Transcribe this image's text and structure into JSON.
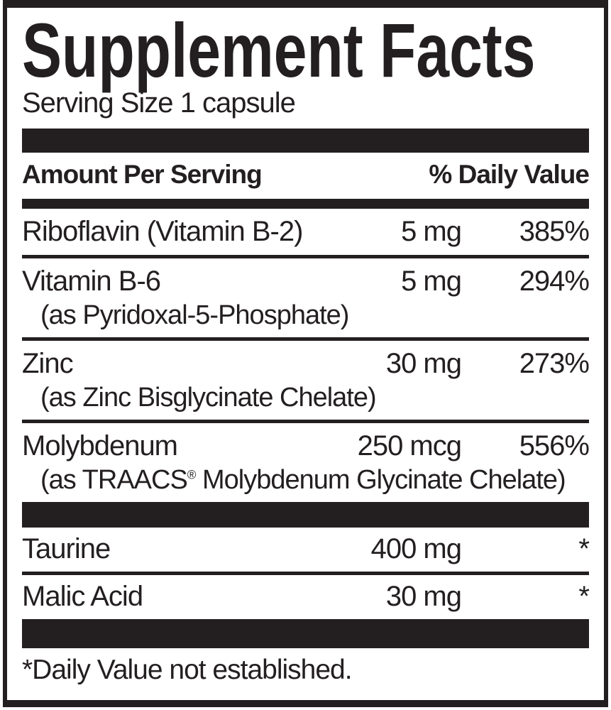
{
  "label": {
    "title": "Supplement Facts",
    "serving_size": "Serving Size 1 capsule",
    "header": {
      "amount_col": "Amount Per Serving",
      "dv_col": "% Daily Value"
    },
    "rows": [
      {
        "name": "Riboflavin (Vitamin B-2)",
        "amount": "5 mg",
        "dv": "385%"
      },
      {
        "name": "Vitamin B-6",
        "detail": "(as Pyridoxal-5-Phosphate)",
        "amount": "5 mg",
        "dv": "294%"
      },
      {
        "name": "Zinc",
        "detail": "(as Zinc Bisglycinate Chelate)",
        "amount": "30 mg",
        "dv": "273%"
      },
      {
        "name": "Molybdenum",
        "detail_prefix": "(as TRAACS",
        "detail_sup": "®",
        "detail_suffix": " Molybdenum Glycinate Chelate)",
        "amount": "250 mcg",
        "dv": "556%"
      }
    ],
    "other_rows": [
      {
        "name": "Taurine",
        "amount": "400 mg",
        "dv": "*"
      },
      {
        "name": "Malic Acid",
        "amount": "30 mg",
        "dv": "*"
      }
    ],
    "footnote": "*Daily Value not established.",
    "colors": {
      "ink": "#231f20",
      "background": "#ffffff"
    }
  }
}
